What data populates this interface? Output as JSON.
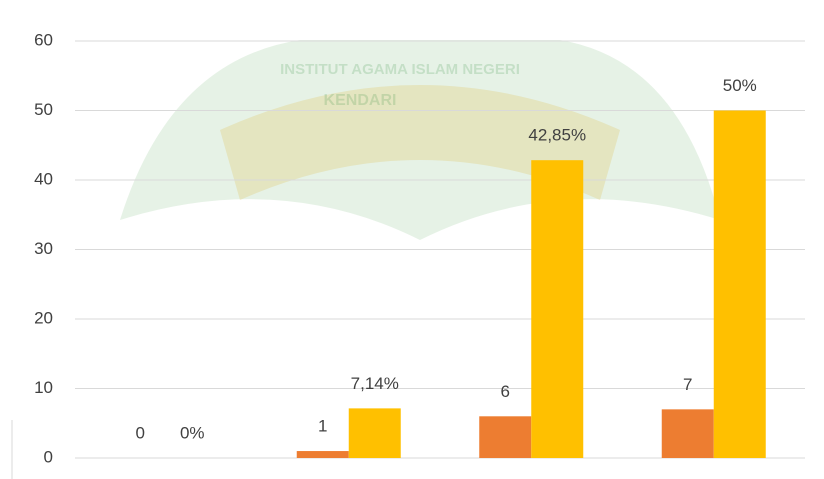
{
  "chart_data": {
    "type": "bar",
    "watermark": [
      "INSTITUT AGAMA ISLAM NEGERI",
      "KENDARI"
    ],
    "categories": [
      null,
      null,
      null,
      null
    ],
    "series": [
      {
        "color": "#ed7d31",
        "values": [
          0,
          1,
          6,
          7
        ]
      },
      {
        "color": "#ffc000",
        "values": [
          0,
          7.14,
          42.85,
          50
        ],
        "value_labels": [
          "0%",
          "7,14%",
          "42,85%",
          "50%"
        ]
      }
    ],
    "ylim": [
      0,
      60
    ],
    "yticks": [
      0,
      10,
      20,
      30,
      40,
      50,
      60
    ],
    "grid": true
  }
}
